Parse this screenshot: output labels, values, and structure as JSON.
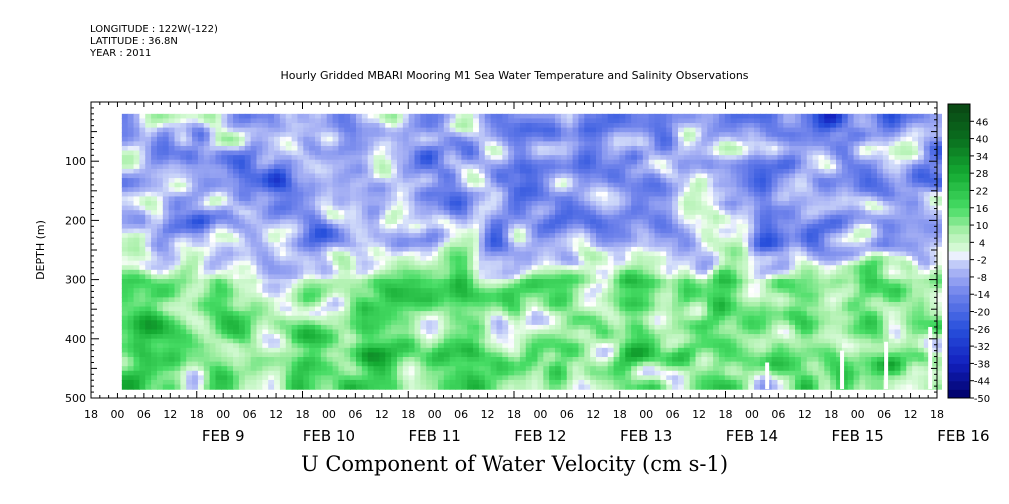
{
  "header": {
    "longitude": "LONGITUDE : 122W(-122)",
    "latitude": "LATITUDE : 36.8N",
    "year": "YEAR : 2011"
  },
  "chart_data": {
    "type": "heatmap",
    "title": "Hourly Gridded MBARI Mooring M1 Sea Water Temperature and Salinity Observations",
    "variable_title": "U Component of Water Velocity (cm s-1)",
    "ylabel": "DEPTH (m)",
    "ylim": [
      500,
      0
    ],
    "y_ticks": [
      100,
      200,
      300,
      400,
      500
    ],
    "data_depth_range": [
      20,
      485
    ],
    "x_hour_ticks": [
      "18",
      "00",
      "06",
      "12",
      "18",
      "00",
      "06",
      "12",
      "18",
      "00",
      "06",
      "12",
      "18",
      "00",
      "06",
      "12",
      "18",
      "00",
      "06",
      "12",
      "18",
      "00",
      "06",
      "12",
      "18",
      "00",
      "06",
      "12",
      "18",
      "00",
      "06",
      "12",
      "18"
    ],
    "x_day_labels": [
      "FEB 9",
      "FEB 10",
      "FEB 11",
      "FEB 12",
      "FEB 13",
      "FEB 14",
      "FEB 15",
      "FEB 16"
    ],
    "x_range_hours": [
      0,
      192
    ],
    "data_time_range_hours": [
      7,
      193
    ],
    "colorbar": {
      "ticks": [
        46,
        40,
        34,
        28,
        22,
        16,
        10,
        4,
        -2,
        -8,
        -14,
        -20,
        -26,
        -32,
        -38,
        -44,
        -50
      ],
      "min": -50,
      "max": 52,
      "colors": {
        "strong_negative": "#000066",
        "negative": "#2a4fd6",
        "weak_negative": "#aab4f0",
        "neutral": "#ffffff",
        "weak_positive": "#b6f0b6",
        "positive": "#22c84a",
        "strong_positive": "#0a4d14"
      }
    },
    "layers": [
      {
        "depth_range": [
          20,
          60
        ],
        "dominant": "negative",
        "value": -12
      },
      {
        "depth_range": [
          60,
          240
        ],
        "dominant": "negative-mixed",
        "value": -10
      },
      {
        "depth_range": [
          240,
          300
        ],
        "dominant": "transition",
        "value": 0
      },
      {
        "depth_range": [
          300,
          485
        ],
        "dominant": "positive",
        "value": 14
      }
    ]
  }
}
